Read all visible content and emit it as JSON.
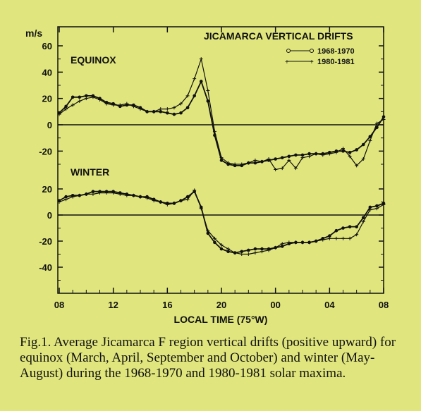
{
  "chart_data": {
    "type": "line",
    "title": "JICAMARCA VERTICAL DRIFTS",
    "ylabel": "m/s",
    "xlabel": "LOCAL TIME (75°W)",
    "xticks": [
      "08",
      "12",
      "16",
      "20",
      "00",
      "04",
      "08"
    ],
    "xrange_hours": [
      8,
      32
    ],
    "legend": [
      "1968-1970",
      "1980-1981"
    ],
    "legend_position": "top-right",
    "panels": [
      {
        "name": "EQUINOX",
        "yticks": [
          "60",
          "40",
          "20",
          "0",
          "-20"
        ],
        "ylim": [
          -35,
          60
        ],
        "series": [
          {
            "name": "1968-1970",
            "x": [
              8,
              8.5,
              9,
              9.5,
              10,
              10.5,
              11,
              11.5,
              12,
              12.5,
              13,
              13.5,
              14,
              14.5,
              15,
              15.5,
              16,
              16.5,
              17,
              17.5,
              18,
              18.5,
              19,
              19.5,
              20,
              20.5,
              21,
              21.5,
              22,
              22.5,
              23,
              23.5,
              24,
              24.5,
              25,
              25.5,
              26,
              26.5,
              27,
              27.5,
              28,
              28.5,
              29,
              29.5,
              30,
              30.5,
              31,
              31.5,
              32
            ],
            "values": [
              9,
              14,
              21,
              21,
              22,
              22,
              20,
              17,
              16,
              14,
              15,
              15,
              13,
              10,
              10,
              10,
              9,
              8,
              9,
              13,
              22,
              33,
              18,
              -8,
              -27,
              -30,
              -31,
              -31,
              -29,
              -29,
              -28,
              -27,
              -26,
              -25,
              -24,
              -23,
              -23,
              -22,
              -22,
              -22,
              -21,
              -20,
              -20,
              -21,
              -19,
              -15,
              -9,
              -2,
              6
            ]
          },
          {
            "name": "1980-1981",
            "x": [
              8,
              8.5,
              9,
              9.5,
              10,
              10.5,
              11,
              11.5,
              12,
              12.5,
              13,
              13.5,
              14,
              14.5,
              15,
              15.5,
              16,
              16.5,
              17,
              17.5,
              18,
              18.5,
              19,
              19.5,
              20,
              20.5,
              21,
              21.5,
              22,
              22.5,
              23,
              23.5,
              24,
              24.5,
              25,
              25.5,
              26,
              26.5,
              27,
              27.5,
              28,
              28.5,
              29,
              29.5,
              30,
              30.5,
              31,
              31.5,
              32
            ],
            "values": [
              8,
              12,
              15,
              18,
              20,
              21,
              19,
              16,
              15,
              15,
              16,
              14,
              12,
              10,
              10,
              12,
              12,
              13,
              16,
              22,
              35,
              50,
              26,
              -5,
              -25,
              -29,
              -30,
              -30,
              -29,
              -27,
              -28,
              -26,
              -34,
              -33,
              -27,
              -33,
              -25,
              -24,
              -22,
              -23,
              -22,
              -21,
              -18,
              -24,
              -31,
              -26,
              -12,
              1,
              4
            ]
          }
        ]
      },
      {
        "name": "WINTER",
        "yticks": [
          "20",
          "0",
          "-20",
          "-40"
        ],
        "ylim": [
          -50,
          25
        ],
        "series": [
          {
            "name": "1968-1970",
            "x": [
              8,
              8.5,
              9,
              9.5,
              10,
              10.5,
              11,
              11.5,
              12,
              12.5,
              13,
              13.5,
              14,
              14.5,
              15,
              15.5,
              16,
              16.5,
              17,
              17.5,
              18,
              18.5,
              19,
              19.5,
              20,
              20.5,
              21,
              21.5,
              22,
              22.5,
              23,
              23.5,
              24,
              24.5,
              25,
              25.5,
              26,
              26.5,
              27,
              27.5,
              28,
              28.5,
              29,
              29.5,
              30,
              30.5,
              31,
              31.5,
              32
            ],
            "values": [
              11,
              14,
              15,
              15,
              16,
              18,
              18,
              18,
              18,
              17,
              16,
              15,
              14,
              14,
              12,
              10,
              9,
              9,
              11,
              14,
              18,
              6,
              -14,
              -21,
              -26,
              -28,
              -29,
              -28,
              -27,
              -26,
              -26,
              -26,
              -25,
              -24,
              -22,
              -21,
              -21,
              -21,
              -20,
              -18,
              -16,
              -12,
              -10,
              -9,
              -9,
              -2,
              6,
              7,
              9
            ]
          },
          {
            "name": "1980-1981",
            "x": [
              8,
              8.5,
              9,
              9.5,
              10,
              10.5,
              11,
              11.5,
              12,
              12.5,
              13,
              13.5,
              14,
              14.5,
              15,
              15.5,
              16,
              16.5,
              17,
              17.5,
              18,
              18.5,
              19,
              19.5,
              20,
              20.5,
              21,
              21.5,
              22,
              22.5,
              23,
              23.5,
              24,
              24.5,
              25,
              25.5,
              26,
              26.5,
              27,
              27.5,
              28,
              28.5,
              29,
              29.5,
              30,
              30.5,
              31,
              31.5,
              32
            ],
            "values": [
              10,
              12,
              14,
              15,
              16,
              16,
              17,
              17,
              17,
              16,
              15,
              15,
              14,
              13,
              11,
              10,
              8,
              9,
              11,
              12,
              19,
              5,
              -12,
              -18,
              -23,
              -26,
              -29,
              -30,
              -30,
              -29,
              -28,
              -27,
              -25,
              -22,
              -21,
              -21,
              -21,
              -21,
              -20,
              -19,
              -18,
              -18,
              -18,
              -18,
              -15,
              -5,
              4,
              5,
              8
            ]
          }
        ]
      }
    ]
  },
  "caption": "Fig.1.  Average Jicamarca F region vertical drifts (positive upward) for equinox (March, April, September and October) and winter (May-August) during the 1968-1970 and 1980-1981 solar maxima."
}
